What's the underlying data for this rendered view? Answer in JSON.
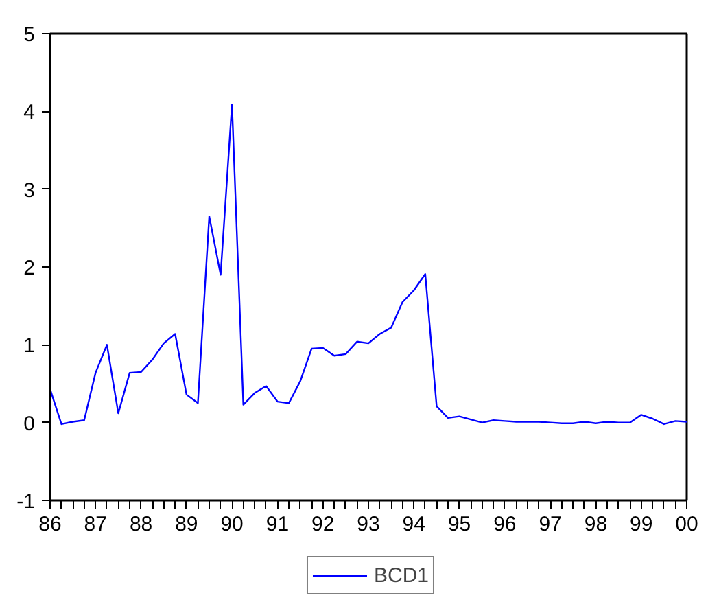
{
  "chart_data": {
    "type": "line",
    "x": [
      1986,
      1986.25,
      1986.5,
      1986.75,
      1987,
      1987.25,
      1987.5,
      1987.75,
      1988,
      1988.25,
      1988.5,
      1988.75,
      1989,
      1989.25,
      1989.5,
      1989.75,
      1990,
      1990.25,
      1990.5,
      1990.75,
      1991,
      1991.25,
      1991.5,
      1991.75,
      1992,
      1992.25,
      1992.5,
      1992.75,
      1993,
      1993.25,
      1993.5,
      1993.75,
      1994,
      1994.25,
      1994.5,
      1994.75,
      1995,
      1995.25,
      1995.5,
      1995.75,
      1996,
      1996.25,
      1996.5,
      1996.75,
      1997,
      1997.25,
      1997.5,
      1997.75,
      1998,
      1998.25,
      1998.5,
      1998.75,
      1999,
      1999.25,
      1999.5,
      1999.75,
      2000
    ],
    "series": [
      {
        "name": "BCD1",
        "color": "#0000ff",
        "values": [
          0.43,
          -0.02,
          0.01,
          0.03,
          0.64,
          1.0,
          0.12,
          0.64,
          0.65,
          0.81,
          1.02,
          1.14,
          0.36,
          0.25,
          2.65,
          1.9,
          4.09,
          0.23,
          0.38,
          0.47,
          0.27,
          0.25,
          0.53,
          0.95,
          0.96,
          0.86,
          0.88,
          1.04,
          1.02,
          1.14,
          1.22,
          1.55,
          1.7,
          1.91,
          0.21,
          0.06,
          0.08,
          0.04,
          0.0,
          0.03,
          0.02,
          0.01,
          0.01,
          0.01,
          0.0,
          -0.01,
          -0.01,
          0.01,
          -0.01,
          0.01,
          0.0,
          0.0,
          0.1,
          0.05,
          -0.02,
          0.02,
          0.01
        ]
      }
    ],
    "xlim": [
      1986,
      2000
    ],
    "xticks": [
      {
        "value": 1986,
        "label": "86"
      },
      {
        "value": 1986.25,
        "label": null
      },
      {
        "value": 1986.5,
        "label": null
      },
      {
        "value": 1986.75,
        "label": null
      },
      {
        "value": 1987,
        "label": "87"
      },
      {
        "value": 1987.25,
        "label": null
      },
      {
        "value": 1987.5,
        "label": null
      },
      {
        "value": 1987.75,
        "label": null
      },
      {
        "value": 1988,
        "label": "88"
      },
      {
        "value": 1988.25,
        "label": null
      },
      {
        "value": 1988.5,
        "label": null
      },
      {
        "value": 1988.75,
        "label": null
      },
      {
        "value": 1989,
        "label": "89"
      },
      {
        "value": 1989.25,
        "label": null
      },
      {
        "value": 1989.5,
        "label": null
      },
      {
        "value": 1989.75,
        "label": null
      },
      {
        "value": 1990,
        "label": "90"
      },
      {
        "value": 1990.25,
        "label": null
      },
      {
        "value": 1990.5,
        "label": null
      },
      {
        "value": 1990.75,
        "label": null
      },
      {
        "value": 1991,
        "label": "91"
      },
      {
        "value": 1991.25,
        "label": null
      },
      {
        "value": 1991.5,
        "label": null
      },
      {
        "value": 1991.75,
        "label": null
      },
      {
        "value": 1992,
        "label": "92"
      },
      {
        "value": 1992.25,
        "label": null
      },
      {
        "value": 1992.5,
        "label": null
      },
      {
        "value": 1992.75,
        "label": null
      },
      {
        "value": 1993,
        "label": "93"
      },
      {
        "value": 1993.25,
        "label": null
      },
      {
        "value": 1993.5,
        "label": null
      },
      {
        "value": 1993.75,
        "label": null
      },
      {
        "value": 1994,
        "label": "94"
      },
      {
        "value": 1994.25,
        "label": null
      },
      {
        "value": 1994.5,
        "label": null
      },
      {
        "value": 1994.75,
        "label": null
      },
      {
        "value": 1995,
        "label": "95"
      },
      {
        "value": 1995.25,
        "label": null
      },
      {
        "value": 1995.5,
        "label": null
      },
      {
        "value": 1995.75,
        "label": null
      },
      {
        "value": 1996,
        "label": "96"
      },
      {
        "value": 1996.25,
        "label": null
      },
      {
        "value": 1996.5,
        "label": null
      },
      {
        "value": 1996.75,
        "label": null
      },
      {
        "value": 1997,
        "label": "97"
      },
      {
        "value": 1997.25,
        "label": null
      },
      {
        "value": 1997.5,
        "label": null
      },
      {
        "value": 1997.75,
        "label": null
      },
      {
        "value": 1998,
        "label": "98"
      },
      {
        "value": 1998.25,
        "label": null
      },
      {
        "value": 1998.5,
        "label": null
      },
      {
        "value": 1998.75,
        "label": null
      },
      {
        "value": 1999,
        "label": "99"
      },
      {
        "value": 1999.25,
        "label": null
      },
      {
        "value": 1999.5,
        "label": null
      },
      {
        "value": 1999.75,
        "label": null
      },
      {
        "value": 2000,
        "label": "00"
      }
    ],
    "ylim": [
      -1,
      5
    ],
    "yticks": [
      -1,
      0,
      1,
      2,
      3,
      4,
      5
    ],
    "grid": false,
    "legend": "bottom"
  }
}
